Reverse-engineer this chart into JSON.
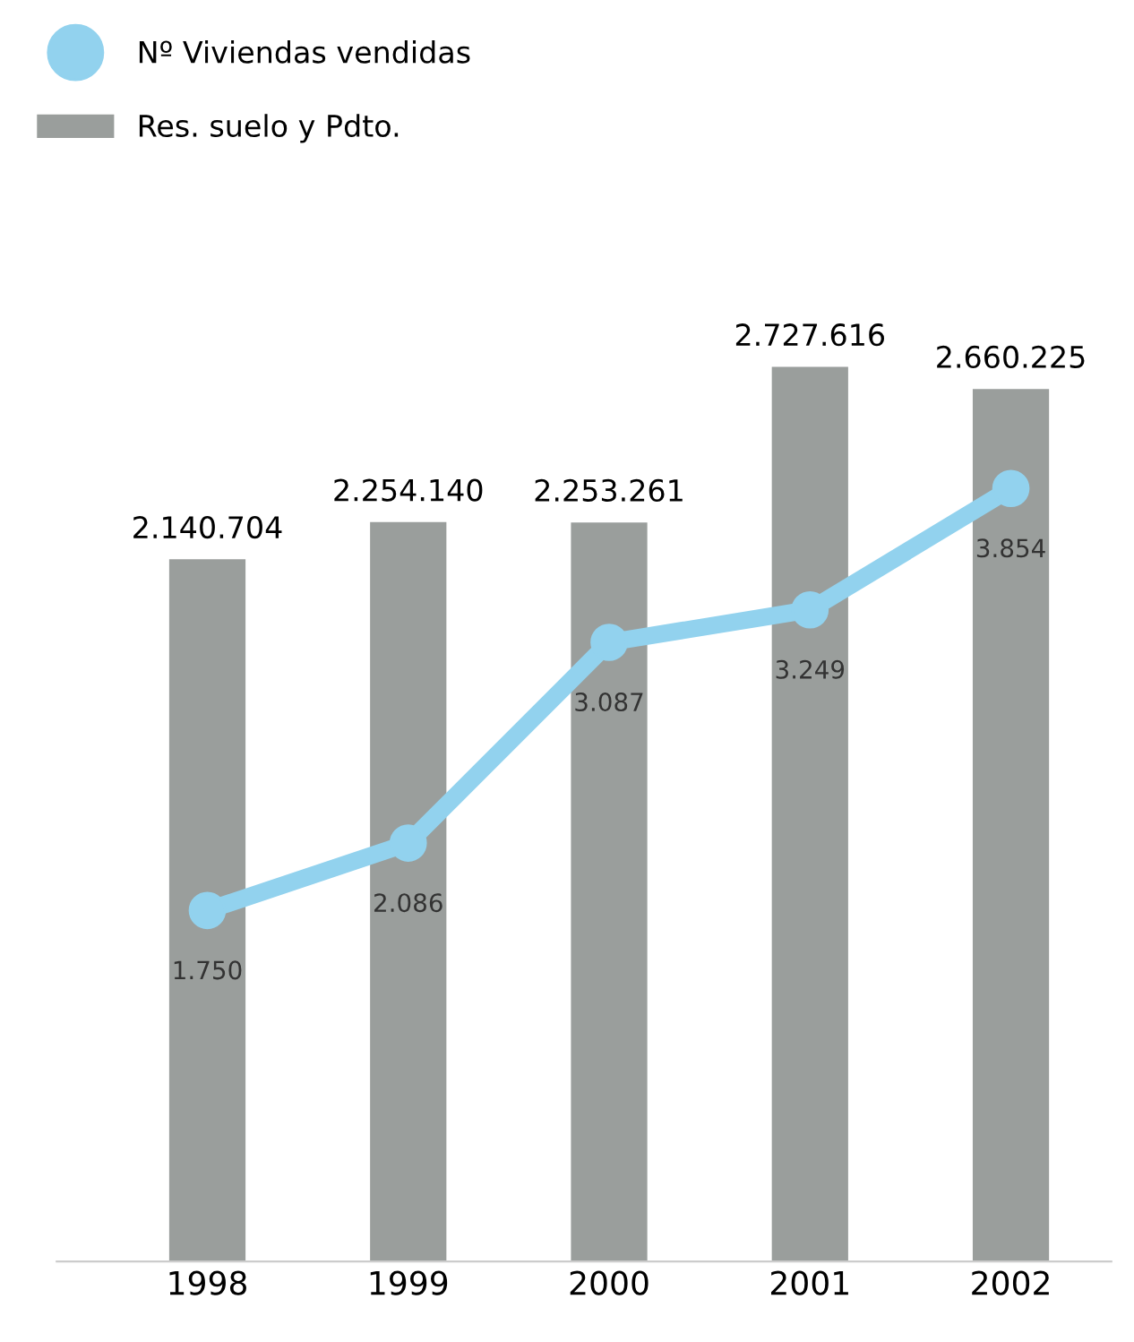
{
  "chart_data": {
    "type": "bar",
    "categories": [
      "1998",
      "1999",
      "2000",
      "2001",
      "2002"
    ],
    "series": [
      {
        "name": "Res. suelo y Pdto.",
        "color": "#9a9e9c",
        "values": [
          2140704,
          2254140,
          2253261,
          2727616,
          2660225
        ],
        "value_labels": [
          "2.140.704",
          "2.254.140",
          "2.253.261",
          "2.727.616",
          "2.660.225"
        ]
      },
      {
        "name": "Nº Viviendas vendidas",
        "type": "line",
        "axis": "y2",
        "color": "#92d2ee",
        "marker": "circle",
        "line_style": "solid",
        "values": [
          1750,
          2086,
          3087,
          3249,
          3854
        ],
        "value_labels": [
          "1.750",
          "2.086",
          "3.087",
          "3.249",
          "3.854"
        ]
      }
    ],
    "legend": "top left",
    "tick_labels": "x",
    "grid": false
  }
}
